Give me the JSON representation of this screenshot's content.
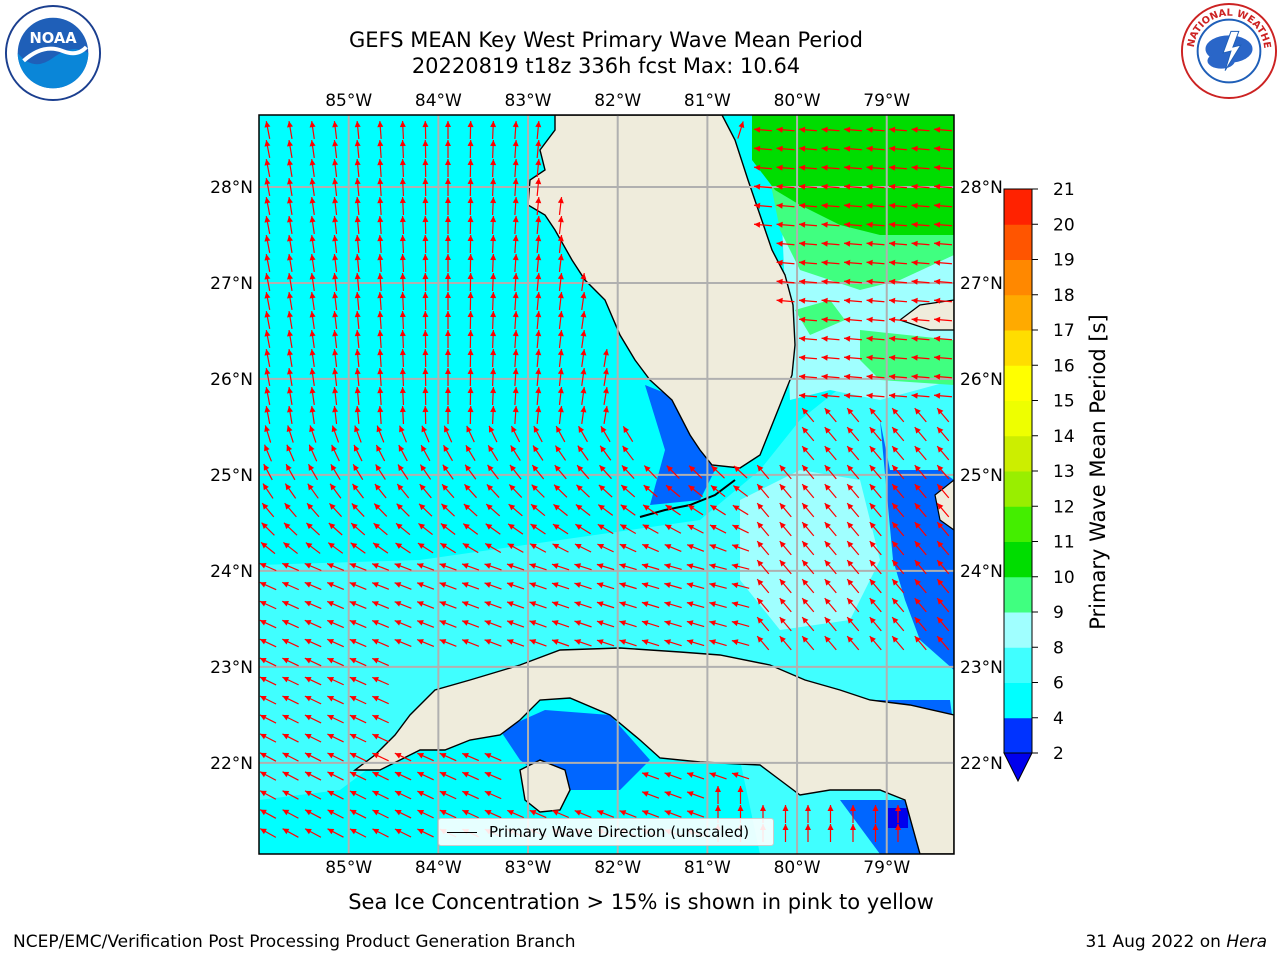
{
  "title": {
    "line1": "GEFS MEAN Key West Primary Wave Mean Period",
    "line2": "20220819 t18z 336h fcst   Max: 10.64"
  },
  "map": {
    "lon_ticks": [
      "85°W",
      "84°W",
      "83°W",
      "82°W",
      "81°W",
      "80°W",
      "79°W"
    ],
    "lat_ticks": [
      "28°N",
      "27°N",
      "26°N",
      "25°N",
      "24°N",
      "23°N",
      "22°N"
    ],
    "lon_range": [
      -86.0,
      -78.25
    ],
    "lat_range": [
      21.05,
      28.75
    ],
    "land_color": "#efecdc",
    "grid_color": "#b0b0b0",
    "arrow_color": "#ff0000"
  },
  "colorbar": {
    "label": "Primary Wave Mean Period [s]",
    "ticks": [
      "2",
      "4",
      "6",
      "8",
      "9",
      "10",
      "11",
      "12",
      "13",
      "14",
      "15",
      "16",
      "17",
      "18",
      "19",
      "20",
      "21"
    ],
    "colors": [
      "#0033ff",
      "#00ffff",
      "#40ffff",
      "#a0ffff",
      "#40ff80",
      "#00dd00",
      "#44ee00",
      "#99ee00",
      "#ccee00",
      "#eeff00",
      "#ffff00",
      "#ffdd00",
      "#ffaa00",
      "#ff8800",
      "#ff5500",
      "#ff2200"
    ],
    "under_color": "#0000ee"
  },
  "legend": {
    "label": "Primary Wave Direction (unscaled)"
  },
  "subtitle": "Sea Ice Concentration > 15% is shown in pink to yellow",
  "footer": {
    "left": "NCEP/EMC/Verification Post Processing Product Generation Branch",
    "right_prefix": "31 Aug 2022 on ",
    "right_machine": "Hera"
  },
  "logos": {
    "left": "NOAA",
    "left_ring": "NATIONAL OCEANIC AND ATMOSPHERIC ADMINISTRATION · U.S. DEPARTMENT OF COMMERCE",
    "right_ring": "NATIONAL WEATHER SERVICE"
  }
}
